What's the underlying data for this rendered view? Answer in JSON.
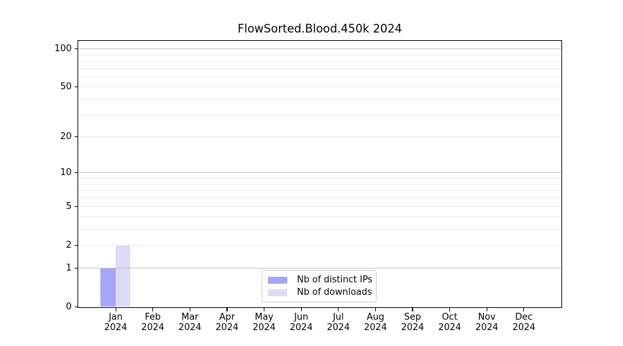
{
  "title": "FlowSorted.Blood.450k 2024",
  "chart_data": {
    "type": "bar",
    "title": "FlowSorted.Blood.450k 2024",
    "categories": [
      "Jan",
      "Feb",
      "Mar",
      "Apr",
      "May",
      "Jun",
      "Jul",
      "Aug",
      "Sep",
      "Oct",
      "Nov",
      "Dec"
    ],
    "year": "2024",
    "series": [
      {
        "name": "Nb of distinct IPs",
        "color": "#a6a6f7",
        "values": [
          1,
          0,
          0,
          0,
          0,
          0,
          0,
          0,
          0,
          0,
          0,
          0
        ]
      },
      {
        "name": "Nb of downloads",
        "color": "#dcdcf8",
        "values": [
          2,
          0,
          0,
          0,
          0,
          0,
          0,
          0,
          0,
          0,
          0,
          0
        ]
      }
    ],
    "yscale": "log1p",
    "ylim": [
      0,
      115
    ],
    "yticks": [
      0,
      1,
      2,
      5,
      10,
      20,
      50,
      100
    ],
    "grid_major": [
      1,
      10,
      100
    ],
    "grid_minor": [
      2,
      3,
      4,
      5,
      6,
      7,
      8,
      9,
      20,
      30,
      40,
      50,
      60,
      70,
      80,
      90
    ],
    "xlabel": "",
    "ylabel": "",
    "legend_position": "lower center",
    "grid": "horizontal"
  },
  "colors": {
    "grid_major": "#c4c4c4",
    "grid_minor": "#eaeaea",
    "spine": "#000000",
    "background": "#ffffff"
  }
}
